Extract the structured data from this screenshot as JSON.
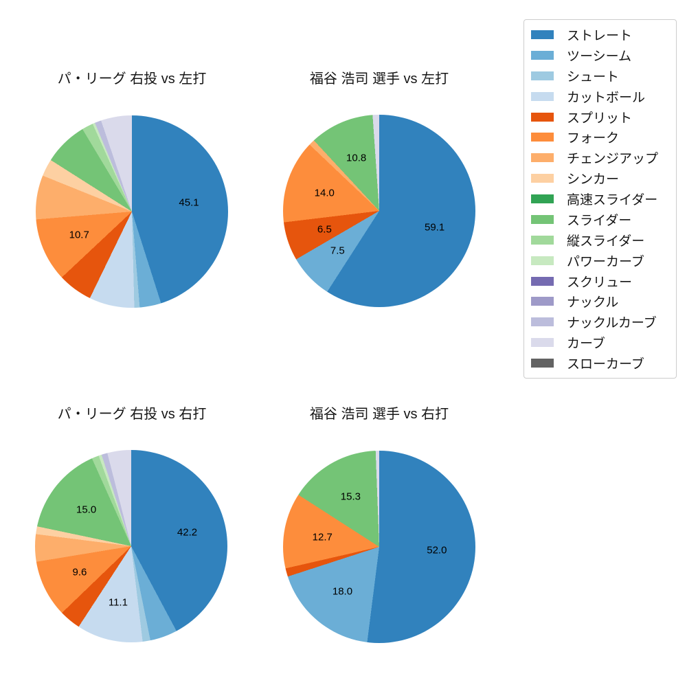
{
  "figure": {
    "background": "#ffffff"
  },
  "legend": {
    "items": [
      {
        "label": "ストレート",
        "color": "#3182bd"
      },
      {
        "label": "ツーシーム",
        "color": "#6baed6"
      },
      {
        "label": "シュート",
        "color": "#9ecae1"
      },
      {
        "label": "カットボール",
        "color": "#c6dbef"
      },
      {
        "label": "スプリット",
        "color": "#e6550d"
      },
      {
        "label": "フォーク",
        "color": "#fd8d3c"
      },
      {
        "label": "チェンジアップ",
        "color": "#fdae6b"
      },
      {
        "label": "シンカー",
        "color": "#fdd0a2"
      },
      {
        "label": "高速スライダー",
        "color": "#31a354"
      },
      {
        "label": "スライダー",
        "color": "#74c476"
      },
      {
        "label": "縦スライダー",
        "color": "#a1d99b"
      },
      {
        "label": "パワーカーブ",
        "color": "#c7e9c0"
      },
      {
        "label": "スクリュー",
        "color": "#756bb1"
      },
      {
        "label": "ナックル",
        "color": "#9e9ac8"
      },
      {
        "label": "ナックルカーブ",
        "color": "#bcbddc"
      },
      {
        "label": "カーブ",
        "color": "#dadaeb"
      },
      {
        "label": "スローカーブ",
        "color": "#636363"
      }
    ]
  },
  "chart_data": [
    {
      "type": "pie",
      "title": "パ・リーグ 右投 vs 左打",
      "direction": "clockwise",
      "start_angle": "top",
      "pct_label_distance": 0.6,
      "series": [
        {
          "label": "ストレート",
          "value": 45.1,
          "pct_label": "45.1",
          "color": "#3182bd"
        },
        {
          "label": "ツーシーム",
          "value": 3.6,
          "pct_label": null,
          "color": "#6baed6"
        },
        {
          "label": "シュート",
          "value": 0.9,
          "pct_label": null,
          "color": "#9ecae1"
        },
        {
          "label": "カットボール",
          "value": 7.6,
          "pct_label": null,
          "color": "#c6dbef"
        },
        {
          "label": "スプリット",
          "value": 5.8,
          "pct_label": null,
          "color": "#e6550d"
        },
        {
          "label": "フォーク",
          "value": 10.7,
          "pct_label": "10.7",
          "color": "#fd8d3c"
        },
        {
          "label": "チェンジアップ",
          "value": 7.4,
          "pct_label": null,
          "color": "#fdae6b"
        },
        {
          "label": "シンカー",
          "value": 2.9,
          "pct_label": null,
          "color": "#fdd0a2"
        },
        {
          "label": "スライダー",
          "value": 7.4,
          "pct_label": null,
          "color": "#74c476"
        },
        {
          "label": "縦スライダー",
          "value": 1.9,
          "pct_label": null,
          "color": "#a1d99b"
        },
        {
          "label": "パワーカーブ",
          "value": 0.4,
          "pct_label": null,
          "color": "#c7e9c0"
        },
        {
          "label": "ナックルカーブ",
          "value": 1.1,
          "pct_label": null,
          "color": "#bcbddc"
        },
        {
          "label": "カーブ",
          "value": 5.2,
          "pct_label": null,
          "color": "#dadaeb"
        }
      ]
    },
    {
      "type": "pie",
      "title": "福谷 浩司 選手 vs 左打",
      "direction": "clockwise",
      "start_angle": "top",
      "pct_label_distance": 0.6,
      "series": [
        {
          "label": "ストレート",
          "value": 59.1,
          "pct_label": "59.1",
          "color": "#3182bd"
        },
        {
          "label": "ツーシーム",
          "value": 7.5,
          "pct_label": "7.5",
          "color": "#6baed6"
        },
        {
          "label": "スプリット",
          "value": 6.5,
          "pct_label": "6.5",
          "color": "#e6550d"
        },
        {
          "label": "フォーク",
          "value": 14.0,
          "pct_label": "14.0",
          "color": "#fd8d3c"
        },
        {
          "label": "チェンジアップ",
          "value": 1.0,
          "pct_label": null,
          "color": "#fdae6b"
        },
        {
          "label": "スライダー",
          "value": 10.8,
          "pct_label": "10.8",
          "color": "#74c476"
        },
        {
          "label": "カーブ",
          "value": 1.1,
          "pct_label": null,
          "color": "#dadaeb"
        }
      ]
    },
    {
      "type": "pie",
      "title": "パ・リーグ 右投 vs 右打",
      "direction": "clockwise",
      "start_angle": "top",
      "pct_label_distance": 0.6,
      "series": [
        {
          "label": "ストレート",
          "value": 42.2,
          "pct_label": "42.2",
          "color": "#3182bd"
        },
        {
          "label": "ツーシーム",
          "value": 4.6,
          "pct_label": null,
          "color": "#6baed6"
        },
        {
          "label": "シュート",
          "value": 1.3,
          "pct_label": null,
          "color": "#9ecae1"
        },
        {
          "label": "カットボール",
          "value": 11.1,
          "pct_label": "11.1",
          "color": "#c6dbef"
        },
        {
          "label": "スプリット",
          "value": 3.6,
          "pct_label": null,
          "color": "#e6550d"
        },
        {
          "label": "フォーク",
          "value": 9.6,
          "pct_label": "9.6",
          "color": "#fd8d3c"
        },
        {
          "label": "チェンジアップ",
          "value": 4.6,
          "pct_label": null,
          "color": "#fdae6b"
        },
        {
          "label": "シンカー",
          "value": 1.3,
          "pct_label": null,
          "color": "#fdd0a2"
        },
        {
          "label": "スライダー",
          "value": 15.0,
          "pct_label": "15.0",
          "color": "#74c476"
        },
        {
          "label": "縦スライダー",
          "value": 1.2,
          "pct_label": null,
          "color": "#a1d99b"
        },
        {
          "label": "パワーカーブ",
          "value": 0.5,
          "pct_label": null,
          "color": "#c7e9c0"
        },
        {
          "label": "ナックルカーブ",
          "value": 1.0,
          "pct_label": null,
          "color": "#bcbddc"
        },
        {
          "label": "カーブ",
          "value": 4.0,
          "pct_label": null,
          "color": "#dadaeb"
        }
      ]
    },
    {
      "type": "pie",
      "title": "福谷 浩司 選手 vs 右打",
      "direction": "clockwise",
      "start_angle": "top",
      "pct_label_distance": 0.6,
      "series": [
        {
          "label": "ストレート",
          "value": 52.0,
          "pct_label": "52.0",
          "color": "#3182bd"
        },
        {
          "label": "ツーシーム",
          "value": 18.0,
          "pct_label": "18.0",
          "color": "#6baed6"
        },
        {
          "label": "スプリット",
          "value": 1.4,
          "pct_label": null,
          "color": "#e6550d"
        },
        {
          "label": "フォーク",
          "value": 12.7,
          "pct_label": "12.7",
          "color": "#fd8d3c"
        },
        {
          "label": "スライダー",
          "value": 15.3,
          "pct_label": "15.3",
          "color": "#74c476"
        },
        {
          "label": "カーブ",
          "value": 0.6,
          "pct_label": null,
          "color": "#dadaeb"
        }
      ]
    }
  ]
}
